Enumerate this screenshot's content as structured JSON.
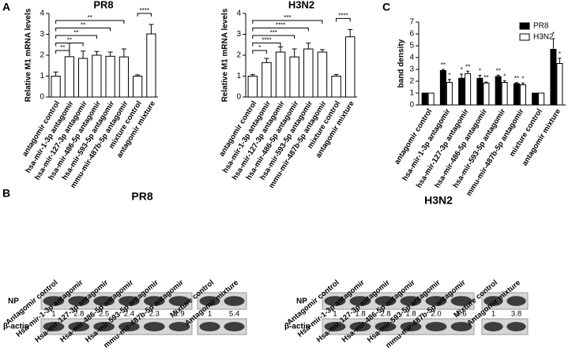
{
  "panel_labels": [
    "A",
    "B",
    "C"
  ],
  "chart_data": [
    {
      "type": "bar",
      "title": "PR8",
      "y_label": "Relative M1 mRNA levels",
      "categories": [
        "antagomir control",
        "hsa-mir-1-3p antagomir",
        "hsa-mir-127-3p antagomir",
        "hsa-mir-486-5p antagomir",
        "hsa-mir-593-5p antagomir",
        "mmu-mir-487b-5p antagomir",
        "mixture control",
        "antagomir mixture"
      ],
      "values": [
        1.0,
        1.93,
        1.85,
        2.0,
        1.95,
        1.92,
        1.0,
        3.02
      ],
      "errors": [
        0.2,
        0.65,
        0.35,
        0.18,
        0.2,
        0.38,
        0.06,
        0.45
      ],
      "color": "#ffffff",
      "ylim": [
        0,
        4
      ],
      "yticks": [
        0,
        1,
        2,
        3,
        4
      ],
      "brackets": [
        {
          "label": "**",
          "from": "antagomir control",
          "to": "hsa-mir-1-3p antagomir"
        },
        {
          "label": "**",
          "from": "antagomir control",
          "to": "hsa-mir-127-3p antagomir"
        },
        {
          "label": "**",
          "from": "antagomir control",
          "to": "hsa-mir-486-5p antagomir"
        },
        {
          "label": "**",
          "from": "antagomir control",
          "to": "hsa-mir-593-5p antagomir"
        },
        {
          "label": "**",
          "from": "antagomir control",
          "to": "mmu-mir-487b-5p antagomir"
        },
        {
          "label": "****",
          "from": "mixture control",
          "to": "antagomir mixture"
        }
      ]
    },
    {
      "type": "bar",
      "title": "H3N2",
      "y_label": "Relative M1 mRNA levels",
      "categories": [
        "antagomir control",
        "hsa-mir-1-3p antagomir",
        "hsa-mir-127-3p antagomir",
        "hsa-mir-486-5p antagomir",
        "hsa-mir-593-5p antagomir",
        "mmu-mir-487b-5p antagomir",
        "mixture control",
        "antagomir mixture"
      ],
      "values": [
        1.0,
        1.65,
        2.15,
        1.92,
        2.3,
        2.15,
        1.0,
        2.88
      ],
      "errors": [
        0.08,
        0.2,
        0.25,
        0.38,
        0.28,
        0.12,
        0.08,
        0.35
      ],
      "color": "#ffffff",
      "ylim": [
        0,
        4
      ],
      "yticks": [
        0,
        1,
        2,
        3,
        4
      ],
      "brackets": [
        {
          "label": "*",
          "from": "antagomir control",
          "to": "hsa-mir-1-3p antagomir"
        },
        {
          "label": "****",
          "from": "antagomir control",
          "to": "hsa-mir-127-3p antagomir"
        },
        {
          "label": "***",
          "from": "antagomir control",
          "to": "hsa-mir-486-5p antagomir"
        },
        {
          "label": "****",
          "from": "antagomir control",
          "to": "hsa-mir-593-5p antagomir"
        },
        {
          "label": "***",
          "from": "antagomir control",
          "to": "mmu-mir-487b-5p antagomir"
        },
        {
          "label": "****",
          "from": "mixture control",
          "to": "antagomir mixture"
        }
      ]
    },
    {
      "type": "grouped_bar",
      "y_label": "band density",
      "categories": [
        "antagomir control",
        "hsa-mir-1-3p antagomir",
        "hsa-mir-127-3p antagomir",
        "hsa-mir-486-5p antagomir",
        "hsa-mir-593-5p antagomir",
        "mmu-mir-487b-5p antagomir",
        "mixture control",
        "antagomir mixture"
      ],
      "series": [
        {
          "name": "PR8",
          "color": "#000000",
          "values": [
            1,
            2.9,
            2.25,
            2.25,
            2.4,
            1.8,
            1,
            4.7
          ],
          "errors": [
            0,
            0.1,
            0.35,
            0.25,
            0.12,
            0.08,
            0,
            0.9
          ],
          "significance": [
            null,
            "**",
            "*",
            "*",
            "**",
            "**",
            null,
            "*"
          ]
        },
        {
          "name": "H3N2",
          "color": "#ffffff",
          "values": [
            1,
            1.9,
            2.65,
            1.85,
            1.9,
            1.7,
            1,
            3.5
          ],
          "errors": [
            0,
            0.25,
            0.2,
            0.08,
            0.15,
            0.15,
            0,
            0.45
          ],
          "significance": [
            null,
            "*",
            "**",
            "**",
            "*",
            "*",
            null,
            "*"
          ]
        }
      ],
      "ylim": [
        0,
        7
      ],
      "yticks": [
        0,
        1,
        2,
        3,
        4,
        5,
        6,
        7
      ],
      "legend": "top-right"
    }
  ],
  "blots": [
    {
      "title": "PR8",
      "lanes": [
        "Antagomir control",
        "Hsa-mir-1-3p antagomir",
        "Hsa-mir-127-3p antagomir",
        "Hsa-mir-486-5p antagomir",
        "Hsa-mir-593-5p antagomir",
        "mmu-mir-487b-5p antagomir",
        "Mixture control",
        "Antagomir mixture"
      ],
      "rows": [
        "NP",
        "β-actin"
      ],
      "ratios": [
        "1",
        "2.8",
        "2.5",
        "2.4",
        "2.3",
        "1.9",
        "1",
        "5.4"
      ]
    },
    {
      "title": "H3N2",
      "lanes": [
        "Antagomir control",
        "Hsa-mir-1-3p antagomir",
        "Hsa-mir-127-3p antagomir",
        "Hsa-mir-486-5p antagomir",
        "Hsa-mir-593-5p antagomir",
        "mmu-mir-487b-5p antagomir",
        "Mixture control",
        "Antagomir mixture"
      ],
      "rows": [
        "NP",
        "β-actin"
      ],
      "ratios": [
        "1",
        "1.8",
        "2.8",
        "1.8",
        "2.0",
        "1.6",
        "1",
        "3.8"
      ]
    }
  ]
}
